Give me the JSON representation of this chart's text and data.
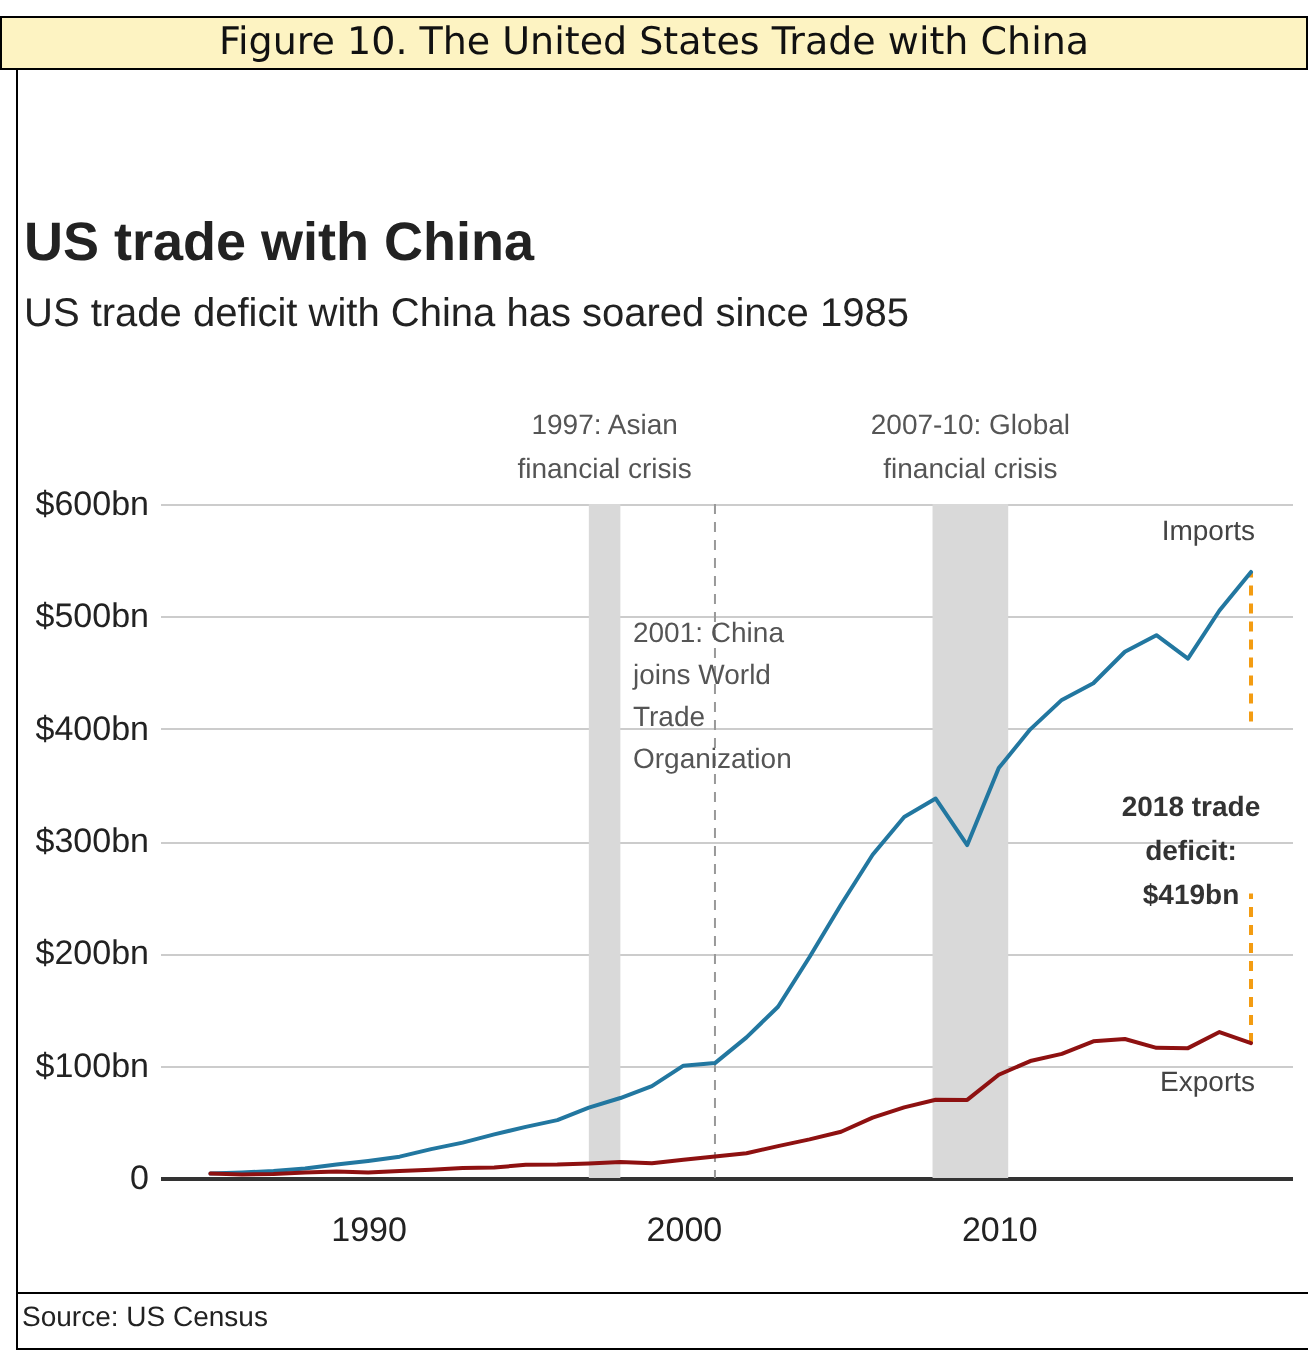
{
  "chart_data": {
    "type": "line",
    "title": "US trade with China",
    "subtitle": "US trade deficit with China has soared since 1985",
    "annotations": [
      "Figure 10. The United States Trade with China",
      "Source: US Census"
    ],
    "x": [
      1985,
      1986,
      1987,
      1988,
      1989,
      1990,
      1991,
      1992,
      1993,
      1994,
      1995,
      1996,
      1997,
      1998,
      1999,
      2000,
      2001,
      2002,
      2003,
      2004,
      2005,
      2006,
      2007,
      2008,
      2009,
      2010,
      2011,
      2012,
      2013,
      2014,
      2015,
      2016,
      2017,
      2018
    ],
    "series": [
      {
        "name": "Imports",
        "color": "#2277a0",
        "values": [
          3.9,
          4.8,
          6.3,
          8.5,
          12,
          15.2,
          19,
          25.7,
          31.5,
          38.8,
          45.5,
          51.5,
          62.6,
          71.2,
          81.8,
          100,
          102.3,
          125.2,
          152.4,
          196.7,
          243.5,
          287.8,
          321.4,
          337.8,
          296.4,
          364.9,
          399.4,
          425.6,
          440.4,
          468.5,
          483.2,
          462.4,
          505.2,
          539.5
        ]
      },
      {
        "name": "Exports",
        "color": "#8e1111",
        "values": [
          3.9,
          3.1,
          3.5,
          5,
          5.8,
          4.8,
          6.3,
          7.4,
          8.8,
          9.3,
          11.8,
          12,
          12.9,
          14.2,
          13.1,
          16.2,
          19.2,
          22.1,
          28.4,
          34.4,
          41.2,
          53.7,
          62.9,
          69.7,
          69.5,
          91.9,
          104.1,
          110.5,
          121.7,
          123.7,
          115.9,
          115.6,
          129.9,
          120.1
        ]
      }
    ],
    "xlim": [
      1983.4,
      2019.3
    ],
    "xticks": [
      1990,
      2000,
      2010
    ],
    "ylim": [
      0,
      600
    ],
    "yticks": [
      0,
      {
        "value": 100,
        "label": "$100bn"
      },
      {
        "value": 200,
        "label": "$200bn"
      },
      {
        "value": 300,
        "label": "$300bn"
      },
      {
        "value": 400,
        "label": "$400bn"
      },
      {
        "value": 500,
        "label": "$500bn"
      },
      {
        "value": 600,
        "label": "$600bn"
      }
    ],
    "grid": "y",
    "bands": [
      {
        "axis": "x",
        "from": 1997,
        "to": 1998,
        "label": "1997: Asian financial crisis",
        "color": "#d9d9d9"
      },
      {
        "axis": "x",
        "from": 2007.9,
        "to": 2010.3,
        "label": "2007-10: Global financial crisis",
        "color": "#d9d9d9"
      }
    ],
    "ref_lines": [
      {
        "axis": "x",
        "value": 2001,
        "label": "2001: China joins World Trade Organization",
        "color": "#999999",
        "line_style": "dashed"
      },
      {
        "axis": "x",
        "value": 2018,
        "label": "2018 trade deficit: $419bn",
        "color": "#f39c12",
        "line_style": "dashed"
      }
    ]
  }
}
